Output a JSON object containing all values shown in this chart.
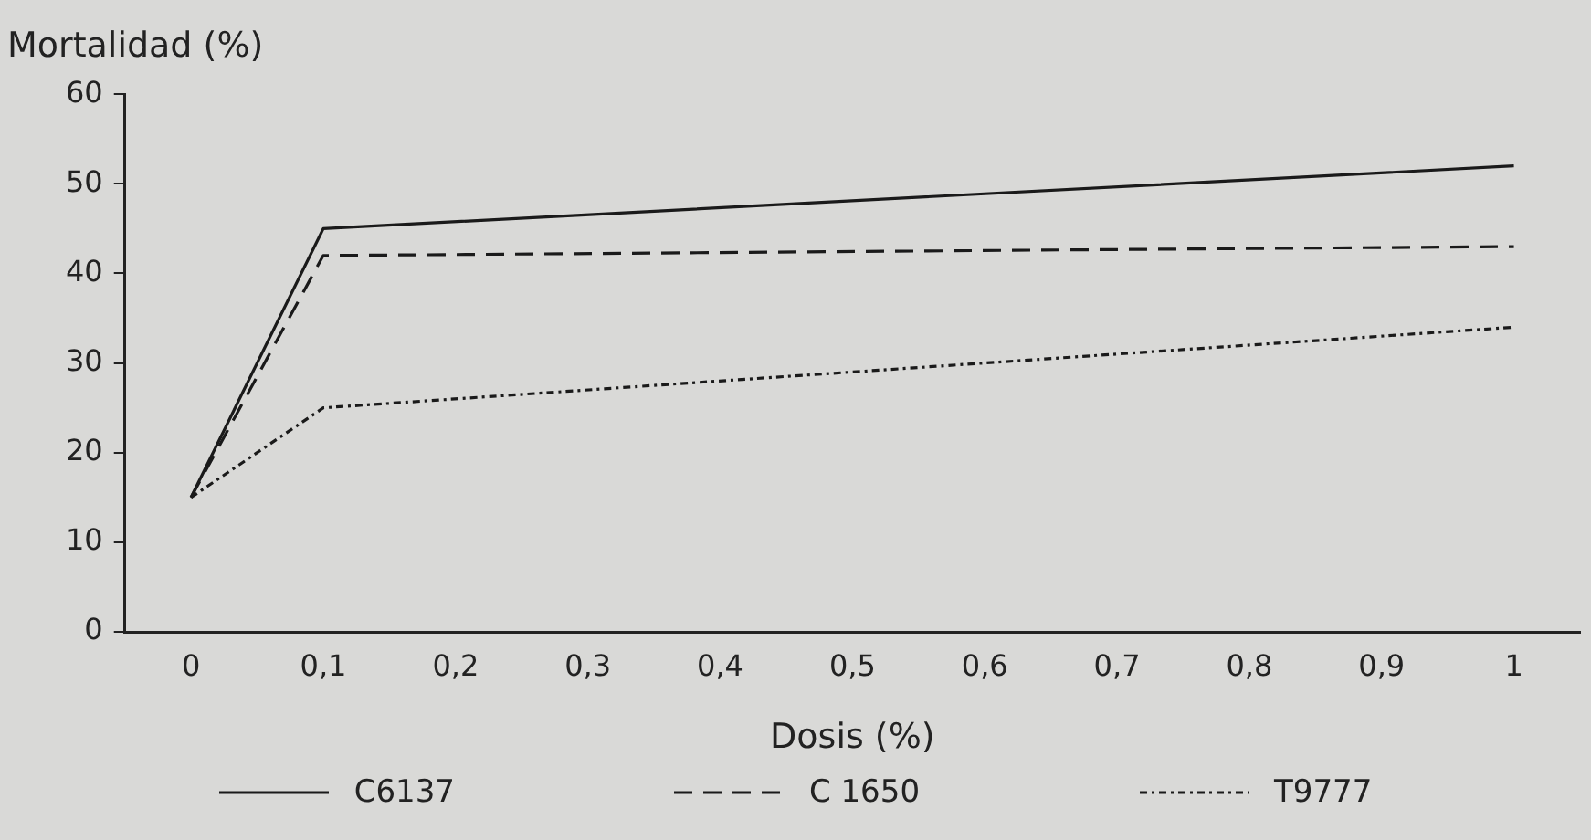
{
  "chart_data": {
    "type": "line",
    "xlabel": "Dosis (%)",
    "ylabel": "Mortalidad (%)",
    "xlim": [
      -0.05,
      1.05
    ],
    "xticks": [
      0,
      {
        "value": 0.1,
        "label": "0,1"
      },
      {
        "value": 0.2,
        "label": "0,2"
      },
      {
        "value": 0.3,
        "label": "0,3"
      },
      {
        "value": 0.4,
        "label": "0,4"
      },
      {
        "value": 0.5,
        "label": "0,5"
      },
      {
        "value": 0.6,
        "label": "0,6"
      },
      {
        "value": 0.7,
        "label": "0,7"
      },
      {
        "value": 0.8,
        "label": "0,8"
      },
      {
        "value": 0.9,
        "label": "0,9"
      },
      1
    ],
    "ylim": [
      0,
      60
    ],
    "yticks": [
      0,
      10,
      20,
      30,
      40,
      50,
      60
    ],
    "grid": false,
    "legend": "bottom",
    "marker": "none",
    "x": [
      0,
      0.1,
      1
    ],
    "series": [
      {
        "name": "C6137",
        "color": "#1a1a1a",
        "line_style": "solid",
        "values": [
          15,
          45,
          52
        ]
      },
      {
        "name": "C 1650",
        "color": "#1a1a1a",
        "line_style": "dashed",
        "values": [
          15,
          42,
          43
        ]
      },
      {
        "name": "T9777",
        "color": "#1a1a1a",
        "line_style": "dotted",
        "values": [
          15,
          25,
          34
        ]
      }
    ]
  }
}
